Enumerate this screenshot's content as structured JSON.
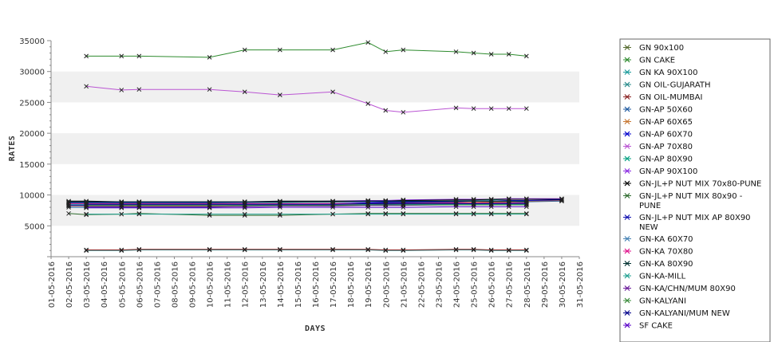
{
  "chart_data": {
    "type": "line",
    "title": "",
    "xlabel": "DAYS",
    "ylabel": "RATES",
    "ylim": [
      0,
      35000
    ],
    "yticks": [
      5000,
      10000,
      15000,
      20000,
      25000,
      30000,
      35000
    ],
    "grid": "alternating horizontal bands",
    "legend": "right",
    "categories": [
      "01-05-2016",
      "02-05-2016",
      "03-05-2016",
      "04-05-2016",
      "05-05-2016",
      "06-05-2016",
      "07-05-2016",
      "08-05-2016",
      "09-05-2016",
      "10-05-2016",
      "11-05-2016",
      "12-05-2016",
      "13-05-2016",
      "14-05-2016",
      "15-05-2016",
      "16-05-2016",
      "17-05-2016",
      "18-05-2016",
      "19-05-2016",
      "20-05-2016",
      "21-05-2016",
      "22-05-2016",
      "23-05-2016",
      "24-05-2016",
      "25-05-2016",
      "26-05-2016",
      "27-05-2016",
      "28-05-2016",
      "29-05-2016",
      "30-05-2016",
      "31-05-2016"
    ],
    "series": [
      {
        "name": "GN 90x100",
        "color": "#556b2f",
        "values": [
          null,
          null,
          8600,
          null,
          8600,
          8600,
          null,
          null,
          8600,
          8600,
          null,
          8600,
          null,
          8600,
          null,
          null,
          8600,
          null,
          8700,
          8700,
          8700,
          null,
          null,
          8700,
          8700,
          8800,
          8800,
          8800,
          null,
          null,
          null
        ]
      },
      {
        "name": "GN CAKE",
        "color": "#2e8b2e",
        "values": [
          null,
          null,
          32500,
          null,
          32500,
          32500,
          null,
          null,
          null,
          32300,
          null,
          33500,
          null,
          33500,
          null,
          null,
          33500,
          null,
          34700,
          33200,
          33500,
          null,
          null,
          33200,
          33000,
          32800,
          32800,
          32500,
          null,
          null,
          null
        ]
      },
      {
        "name": "GN KA 90X100",
        "color": "#1a9b9b",
        "values": [
          null,
          8500,
          8500,
          null,
          8500,
          8500,
          null,
          null,
          null,
          8500,
          null,
          8500,
          null,
          8500,
          null,
          null,
          8500,
          null,
          8500,
          8500,
          8500,
          null,
          null,
          8500,
          8500,
          8500,
          8500,
          8500,
          null,
          null,
          null
        ]
      },
      {
        "name": "GN OIL-GUJARATH",
        "color": "#2a8c8c",
        "values": [
          null,
          null,
          1000,
          null,
          1000,
          1100,
          null,
          null,
          null,
          1100,
          null,
          1100,
          null,
          1100,
          null,
          null,
          1100,
          null,
          1100,
          1000,
          1000,
          null,
          null,
          1100,
          1100,
          1000,
          1000,
          1000,
          null,
          null,
          null
        ]
      },
      {
        "name": "GN OIL-MUMBAI",
        "color": "#8b2323",
        "values": [
          null,
          null,
          1100,
          null,
          1100,
          1200,
          null,
          null,
          null,
          1200,
          null,
          1200,
          null,
          1200,
          null,
          null,
          1200,
          null,
          1200,
          1100,
          1100,
          null,
          null,
          1200,
          1200,
          1100,
          1100,
          1100,
          null,
          null,
          null
        ]
      },
      {
        "name": "GN-AP 50X60",
        "color": "#1e5aa0",
        "values": [
          null,
          8000,
          8000,
          null,
          8000,
          8000,
          null,
          null,
          null,
          8000,
          null,
          8200,
          null,
          8300,
          null,
          null,
          8300,
          null,
          8400,
          8500,
          8600,
          null,
          null,
          8600,
          8700,
          8700,
          8800,
          8900,
          null,
          9000,
          null
        ]
      },
      {
        "name": "GN-AP 60X65",
        "color": "#c87832",
        "values": [
          null,
          8200,
          8200,
          null,
          8200,
          8200,
          null,
          null,
          null,
          8200,
          null,
          8300,
          null,
          8400,
          null,
          null,
          8500,
          null,
          8600,
          8600,
          8700,
          null,
          null,
          8800,
          8800,
          8900,
          8900,
          9000,
          null,
          9100,
          null
        ]
      },
      {
        "name": "GN-AP 60X70",
        "color": "#0000cd",
        "values": [
          null,
          8300,
          8300,
          null,
          8300,
          8400,
          null,
          null,
          null,
          8400,
          null,
          8500,
          null,
          8600,
          null,
          null,
          8600,
          null,
          8700,
          8800,
          8800,
          null,
          null,
          8900,
          9000,
          9000,
          9100,
          9100,
          null,
          9200,
          null
        ]
      },
      {
        "name": "GN-AP 70X80",
        "color": "#ba55d3",
        "values": [
          null,
          null,
          27600,
          null,
          27000,
          27100,
          null,
          null,
          null,
          27100,
          null,
          26700,
          null,
          26200,
          null,
          null,
          26700,
          null,
          24800,
          23700,
          23400,
          null,
          null,
          24100,
          24000,
          24000,
          24000,
          24000,
          null,
          null,
          null
        ]
      },
      {
        "name": "GN-AP 80X90",
        "color": "#00a080",
        "values": [
          null,
          8700,
          8700,
          null,
          8700,
          8700,
          null,
          null,
          null,
          8700,
          null,
          8800,
          null,
          8800,
          null,
          null,
          8900,
          null,
          9000,
          9000,
          9100,
          null,
          null,
          9200,
          9200,
          9200,
          9300,
          9300,
          null,
          9300,
          null
        ]
      },
      {
        "name": "GN-AP 90X100",
        "color": "#8a2be2",
        "values": [
          null,
          8800,
          8800,
          null,
          8800,
          8800,
          null,
          null,
          null,
          8800,
          null,
          8900,
          null,
          8900,
          null,
          null,
          9000,
          null,
          9100,
          9100,
          9200,
          null,
          null,
          9300,
          9300,
          9300,
          9400,
          9400,
          null,
          9400,
          null
        ]
      },
      {
        "name": "GN-JL+P NUT MIX 70x80-PUNE",
        "color": "#000000",
        "values": [
          null,
          9000,
          9000,
          null,
          8900,
          8900,
          null,
          null,
          null,
          8900,
          null,
          8900,
          null,
          9000,
          null,
          null,
          9000,
          null,
          9000,
          9000,
          9100,
          null,
          null,
          9200,
          9200,
          9300,
          9300,
          9300,
          null,
          9300,
          null
        ]
      },
      {
        "name": "GN-JL+P NUT MIX 80x90 - PUNE",
        "color": "#2e6b2e",
        "values": [
          null,
          7000,
          6800,
          null,
          6900,
          7000,
          null,
          null,
          null,
          6700,
          null,
          6700,
          null,
          6700,
          null,
          null,
          6900,
          null,
          7000,
          7000,
          7000,
          null,
          null,
          7000,
          7000,
          7000,
          7000,
          7000,
          null,
          null,
          null
        ]
      },
      {
        "name": "GN-JL+P NUT MIX AP 80X90 NEW",
        "color": "#1010b0",
        "values": [
          null,
          8800,
          8800,
          null,
          8800,
          8800,
          null,
          null,
          null,
          8800,
          null,
          8800,
          null,
          8900,
          null,
          null,
          8900,
          null,
          8900,
          8900,
          8900,
          null,
          null,
          9000,
          9000,
          9000,
          9000,
          9000,
          null,
          null,
          null
        ]
      },
      {
        "name": "GN-KA 60X70",
        "color": "#4682b4",
        "values": [
          null,
          8400,
          8400,
          null,
          8400,
          8400,
          null,
          null,
          null,
          8400,
          null,
          8400,
          null,
          8400,
          null,
          null,
          8400,
          null,
          8400,
          8400,
          8400,
          null,
          null,
          8400,
          8400,
          8400,
          8400,
          8400,
          null,
          null,
          null
        ]
      },
      {
        "name": "GN-KA 70X80",
        "color": "#e0148c",
        "values": [
          null,
          8600,
          8600,
          null,
          8600,
          8600,
          null,
          null,
          null,
          8600,
          null,
          8600,
          null,
          8600,
          null,
          null,
          8600,
          null,
          8600,
          8600,
          8600,
          null,
          null,
          8700,
          8700,
          8700,
          8700,
          8700,
          null,
          null,
          null
        ]
      },
      {
        "name": "GN-KA 80X90",
        "color": "#003030",
        "values": [
          null,
          8900,
          8900,
          null,
          8900,
          8900,
          null,
          null,
          null,
          8900,
          null,
          8900,
          null,
          8900,
          null,
          null,
          8900,
          null,
          9000,
          9000,
          9000,
          null,
          null,
          9000,
          9000,
          9000,
          9000,
          9000,
          null,
          null,
          null
        ]
      },
      {
        "name": "GN-KA-MILL",
        "color": "#20a090",
        "values": [
          null,
          null,
          6900,
          null,
          6900,
          6900,
          null,
          null,
          null,
          6900,
          null,
          6900,
          null,
          6900,
          null,
          null,
          6900,
          null,
          6900,
          6900,
          6900,
          null,
          null,
          6900,
          6900,
          6900,
          6900,
          6900,
          null,
          null,
          null
        ]
      },
      {
        "name": "GN-KA/CHN/MUM 80X90",
        "color": "#6a1b9a",
        "values": [
          null,
          null,
          8100,
          null,
          8100,
          8100,
          null,
          null,
          null,
          8100,
          null,
          8100,
          null,
          8200,
          null,
          null,
          8200,
          null,
          8300,
          8300,
          8300,
          null,
          null,
          8400,
          8400,
          8400,
          8400,
          8400,
          null,
          null,
          null
        ]
      },
      {
        "name": "GN-KALYANI",
        "color": "#3c8c3c",
        "values": [
          null,
          null,
          8300,
          null,
          8300,
          8300,
          null,
          null,
          null,
          8300,
          null,
          8300,
          null,
          8300,
          null,
          null,
          8300,
          null,
          8400,
          8400,
          8400,
          null,
          null,
          8400,
          8400,
          8400,
          8400,
          8400,
          null,
          null,
          null
        ]
      },
      {
        "name": "GN-KALYANI/MUM NEW",
        "color": "#00008b",
        "values": [
          null,
          null,
          8500,
          null,
          8500,
          8500,
          null,
          null,
          null,
          8500,
          null,
          8500,
          null,
          8500,
          null,
          null,
          8500,
          null,
          8600,
          8600,
          8600,
          null,
          null,
          8600,
          8600,
          8600,
          8600,
          8600,
          null,
          null,
          null
        ]
      },
      {
        "name": "SF CAKE",
        "color": "#5a00c8",
        "values": [
          null,
          null,
          7900,
          null,
          7900,
          7900,
          null,
          null,
          null,
          7900,
          null,
          7900,
          null,
          8000,
          null,
          null,
          8000,
          null,
          8000,
          8000,
          8000,
          null,
          null,
          8100,
          8100,
          8100,
          8100,
          8100,
          null,
          null,
          null
        ]
      }
    ]
  }
}
